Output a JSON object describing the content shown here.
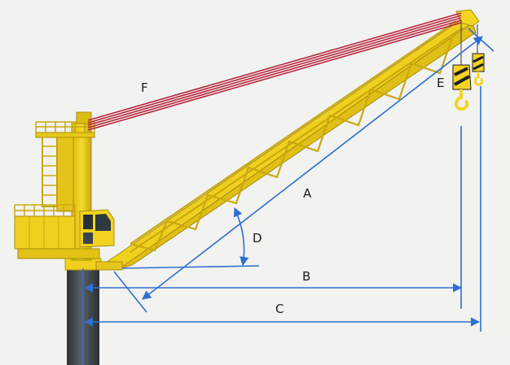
{
  "labels": {
    "a": "A",
    "b": "B",
    "c": "C",
    "d": "D",
    "e": "E",
    "f": "F"
  },
  "colors": {
    "background": "#f2f2f1",
    "crane_yellow": "#f2d21e",
    "crane_shadow": "#c9a90f",
    "pedestal": "#3f4448",
    "cable": "#b8243a",
    "dimension_line": "#2f6fcf",
    "hook_black": "#1e1e1e"
  }
}
